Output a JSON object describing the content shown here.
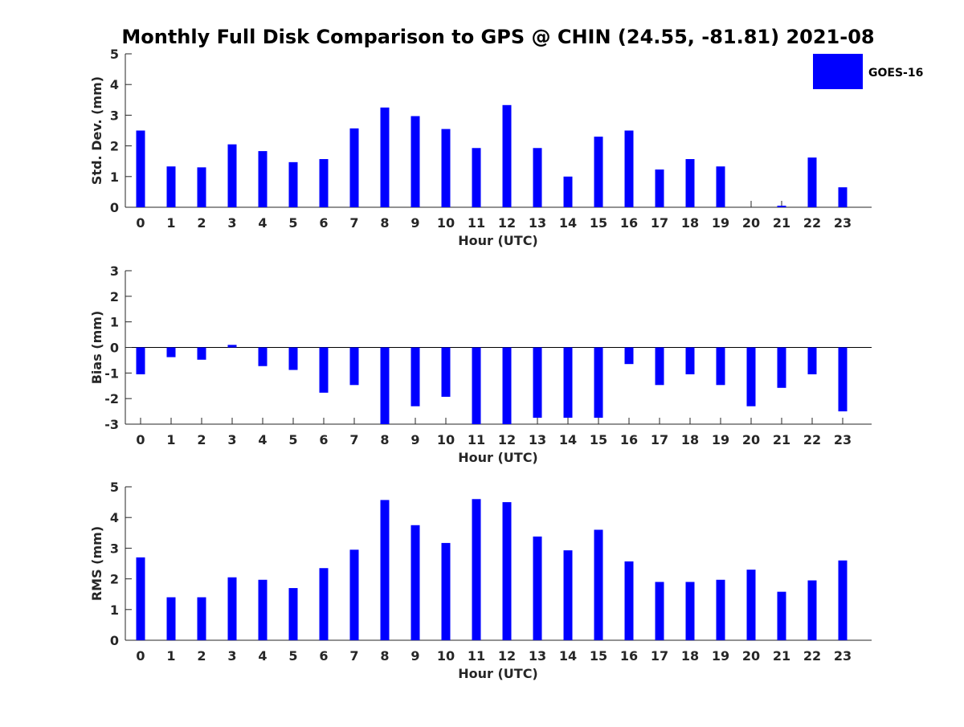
{
  "title": "Monthly Full Disk Comparison to GPS @ CHIN (24.55, -81.81) 2021-08",
  "colors": {
    "bar": "#0000ff",
    "axis": "#262626"
  },
  "legend": {
    "label": "GOES-16",
    "placement": "top-right"
  },
  "chart_data": [
    {
      "type": "bar",
      "xlabel": "Hour (UTC)",
      "ylabel": "Std. Dev. (mm)",
      "ylim": [
        0,
        5
      ],
      "yticks": [
        0,
        1,
        2,
        3,
        4,
        5
      ],
      "categories": [
        "0",
        "1",
        "2",
        "3",
        "4",
        "5",
        "6",
        "7",
        "8",
        "9",
        "10",
        "11",
        "12",
        "13",
        "14",
        "15",
        "16",
        "17",
        "18",
        "19",
        "20",
        "21",
        "22",
        "23"
      ],
      "series": [
        {
          "name": "GOES-16",
          "values": [
            2.5,
            1.33,
            1.3,
            2.05,
            1.83,
            1.47,
            1.57,
            2.57,
            3.25,
            2.97,
            2.55,
            1.93,
            3.33,
            1.93,
            1.0,
            2.3,
            2.5,
            1.23,
            1.57,
            1.33,
            0.0,
            0.05,
            1.62,
            0.65
          ]
        }
      ]
    },
    {
      "type": "bar",
      "xlabel": "Hour (UTC)",
      "ylabel": "Bias (mm)",
      "ylim": [
        -3,
        3
      ],
      "yticks": [
        -3,
        -2,
        -1,
        0,
        1,
        2,
        3
      ],
      "categories": [
        "0",
        "1",
        "2",
        "3",
        "4",
        "5",
        "6",
        "7",
        "8",
        "9",
        "10",
        "11",
        "12",
        "13",
        "14",
        "15",
        "16",
        "17",
        "18",
        "19",
        "20",
        "21",
        "22",
        "23"
      ],
      "series": [
        {
          "name": "GOES-16",
          "values": [
            -1.05,
            -0.38,
            -0.48,
            0.1,
            -0.73,
            -0.88,
            -1.77,
            -1.47,
            -3.0,
            -2.3,
            -1.93,
            -3.0,
            -3.0,
            -2.75,
            -2.75,
            -2.75,
            -0.65,
            -1.47,
            -1.05,
            -1.47,
            -2.3,
            -1.58,
            -1.05,
            -2.5
          ]
        }
      ]
    },
    {
      "type": "bar",
      "xlabel": "Hour (UTC)",
      "ylabel": "RMS (mm)",
      "ylim": [
        0,
        5
      ],
      "yticks": [
        0,
        1,
        2,
        3,
        4,
        5
      ],
      "categories": [
        "0",
        "1",
        "2",
        "3",
        "4",
        "5",
        "6",
        "7",
        "8",
        "9",
        "10",
        "11",
        "12",
        "13",
        "14",
        "15",
        "16",
        "17",
        "18",
        "19",
        "20",
        "21",
        "22",
        "23"
      ],
      "series": [
        {
          "name": "GOES-16",
          "values": [
            2.7,
            1.4,
            1.4,
            2.05,
            1.97,
            1.7,
            2.35,
            2.95,
            4.57,
            3.75,
            3.17,
            4.6,
            4.5,
            3.38,
            2.93,
            3.6,
            2.57,
            1.9,
            1.9,
            1.97,
            2.3,
            1.58,
            1.95,
            2.6
          ]
        }
      ]
    }
  ]
}
